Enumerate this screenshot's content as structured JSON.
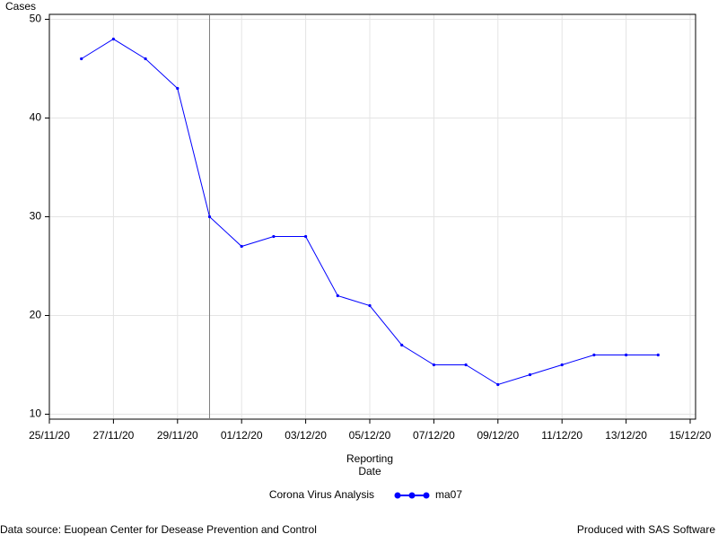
{
  "chart_data": {
    "type": "line",
    "ylabel": "Cases",
    "xlabel_lines": [
      "Reporting",
      "Date"
    ],
    "legend_title": "Corona Virus Analysis",
    "footnote_left": "Data source: Euopean Center for Desease Prevention and Control",
    "footnote_right": "Produced with SAS Software",
    "grid": true,
    "reference_line_x": "2020-11-30",
    "x": [
      "2020-11-26",
      "2020-11-27",
      "2020-11-28",
      "2020-11-29",
      "2020-11-30",
      "2020-12-01",
      "2020-12-02",
      "2020-12-03",
      "2020-12-04",
      "2020-12-05",
      "2020-12-06",
      "2020-12-07",
      "2020-12-08",
      "2020-12-09",
      "2020-12-10",
      "2020-12-11",
      "2020-12-12",
      "2020-12-13",
      "2020-12-14"
    ],
    "series": [
      {
        "name": "ma07",
        "color": "#0000ff",
        "values": [
          46,
          48,
          46,
          43,
          30,
          27,
          28,
          28,
          22,
          21,
          17,
          15,
          15,
          13,
          14,
          15,
          16,
          16,
          16
        ]
      }
    ],
    "xlim": [
      "2020-11-25",
      "2020-12-15"
    ],
    "xticks": [
      {
        "value": "2020-11-25",
        "label": "25/11/20"
      },
      {
        "value": "2020-11-27",
        "label": "27/11/20"
      },
      {
        "value": "2020-11-29",
        "label": "29/11/20"
      },
      {
        "value": "2020-12-01",
        "label": "01/12/20"
      },
      {
        "value": "2020-12-03",
        "label": "03/12/20"
      },
      {
        "value": "2020-12-05",
        "label": "05/12/20"
      },
      {
        "value": "2020-12-07",
        "label": "07/12/20"
      },
      {
        "value": "2020-12-09",
        "label": "09/12/20"
      },
      {
        "value": "2020-12-11",
        "label": "11/12/20"
      },
      {
        "value": "2020-12-13",
        "label": "13/12/20"
      },
      {
        "value": "2020-12-15",
        "label": "15/12/20"
      }
    ],
    "ylim": [
      9.5,
      50.5
    ],
    "yticks": [
      10,
      20,
      30,
      40,
      50
    ]
  }
}
